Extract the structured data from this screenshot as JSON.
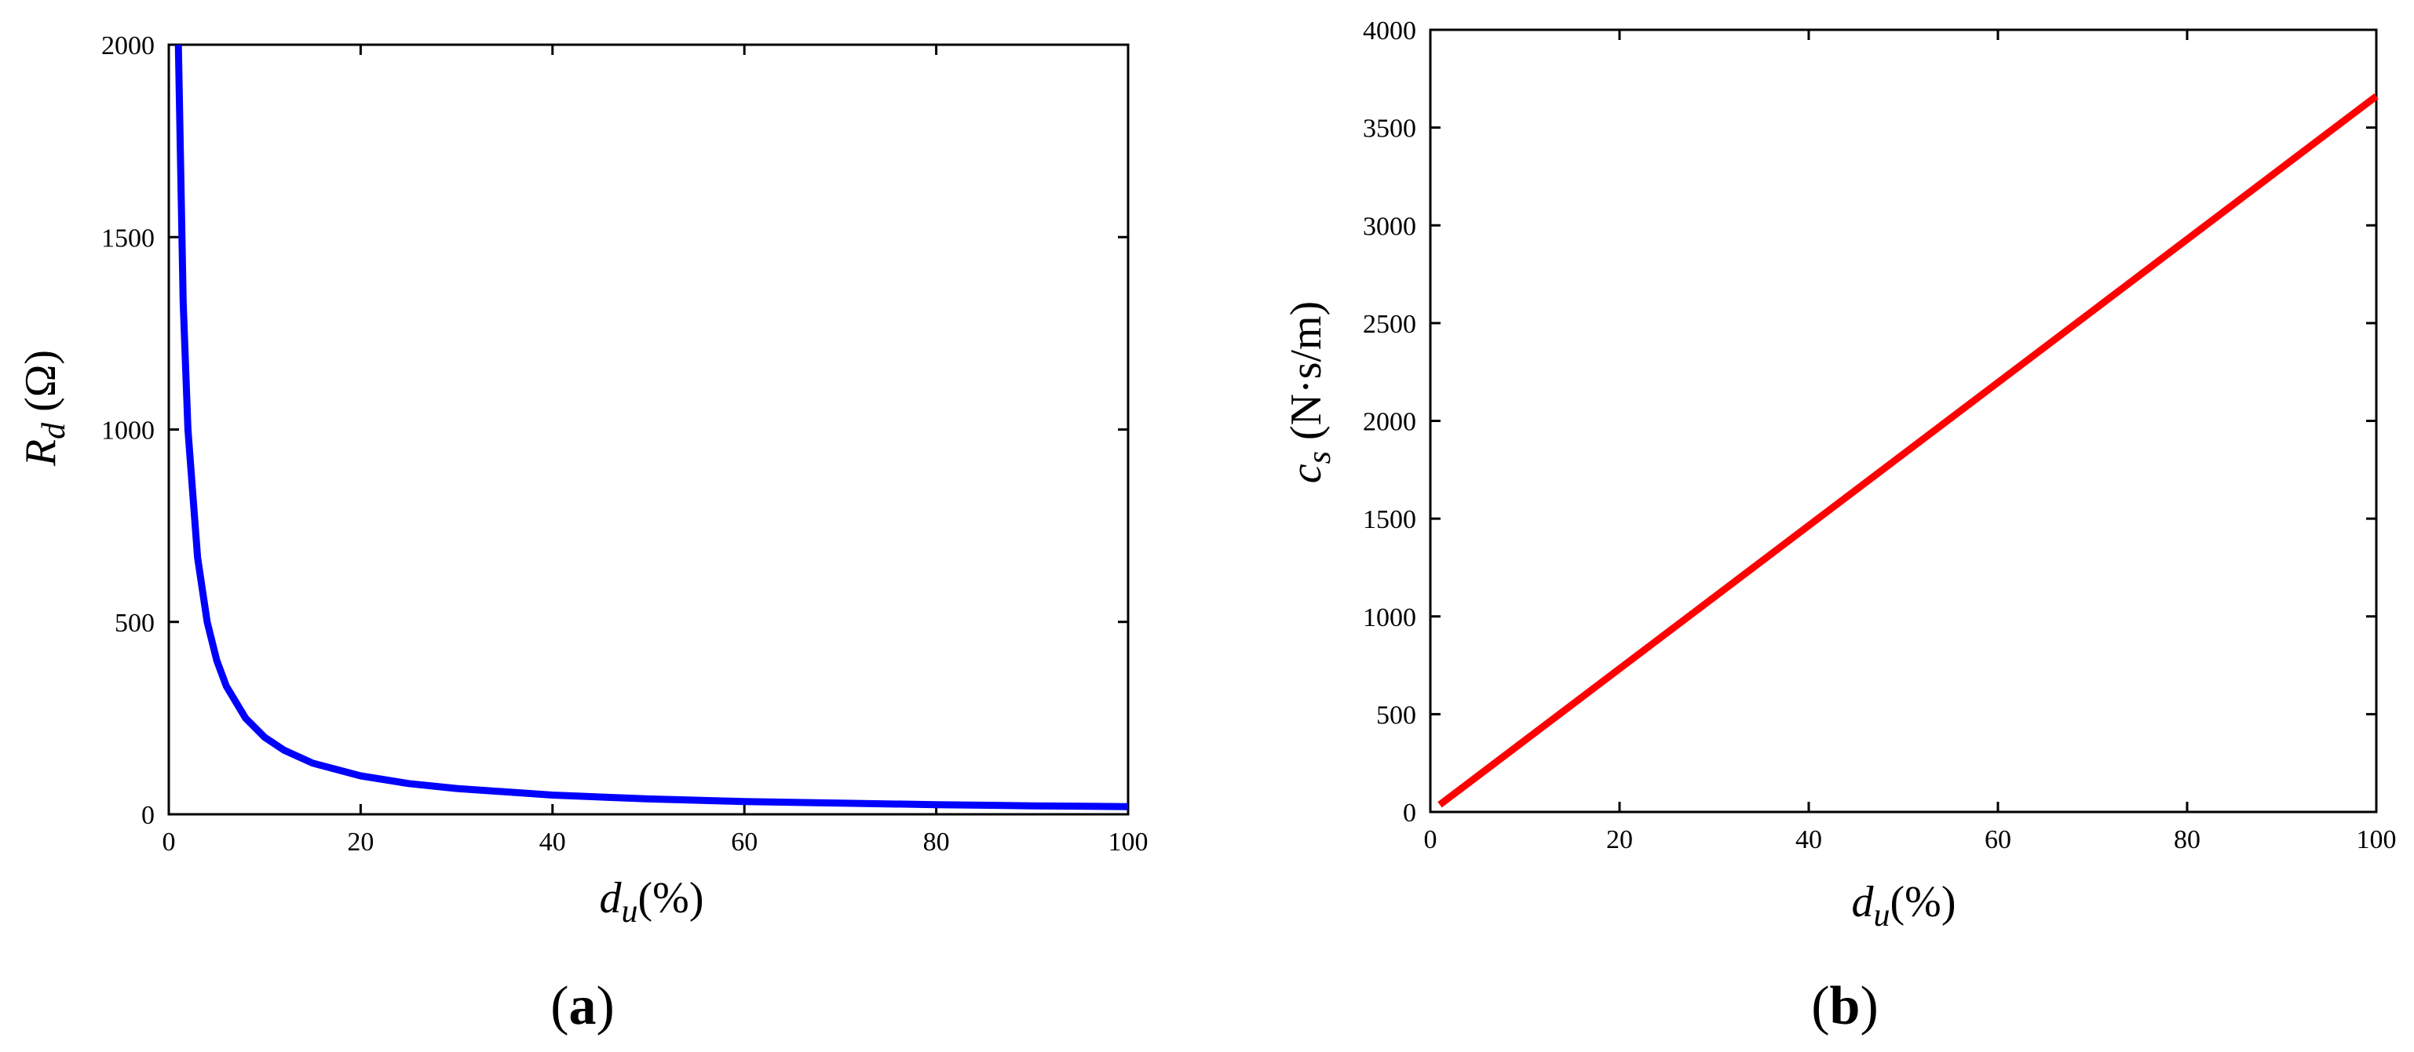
{
  "chart_data": [
    {
      "type": "line",
      "panel_label": "(a)",
      "panel_letter": "a",
      "xlabel": {
        "symbol": "d",
        "subscript": "u",
        "unit": "(%)"
      },
      "ylabel": {
        "symbol": "R",
        "subscript": "d",
        "unit": "(Ω)"
      },
      "xlim": [
        0,
        100
      ],
      "ylim": [
        0,
        2000
      ],
      "xticks": [
        0,
        20,
        40,
        60,
        80,
        100
      ],
      "yticks": [
        0,
        500,
        1000,
        1500,
        2000
      ],
      "grid": false,
      "series": [
        {
          "color": "#0000ff",
          "x": [
            1.0,
            1.5,
            2,
            3,
            4,
            5,
            6,
            8,
            10,
            12,
            15,
            20,
            25,
            30,
            40,
            50,
            60,
            70,
            80,
            90,
            100
          ],
          "y": [
            2000,
            1333,
            1000,
            667,
            500,
            400,
            333,
            250,
            200,
            167,
            133,
            100,
            80,
            67,
            50,
            40,
            33,
            29,
            25,
            22,
            20
          ]
        }
      ]
    },
    {
      "type": "line",
      "panel_label": "(b)",
      "panel_letter": "b",
      "xlabel": {
        "symbol": "d",
        "subscript": "u",
        "unit": "(%)"
      },
      "ylabel": {
        "symbol": "c",
        "subscript": "s",
        "unit": "(N·s/m)"
      },
      "xlim": [
        0,
        100
      ],
      "ylim": [
        0,
        4000
      ],
      "xticks": [
        0,
        20,
        40,
        60,
        80,
        100
      ],
      "yticks": [
        0,
        500,
        1000,
        1500,
        2000,
        2500,
        3000,
        3500,
        4000
      ],
      "grid": false,
      "series": [
        {
          "color": "#ff0000",
          "x": [
            1,
            100
          ],
          "y": [
            37,
            3660
          ]
        }
      ]
    }
  ]
}
